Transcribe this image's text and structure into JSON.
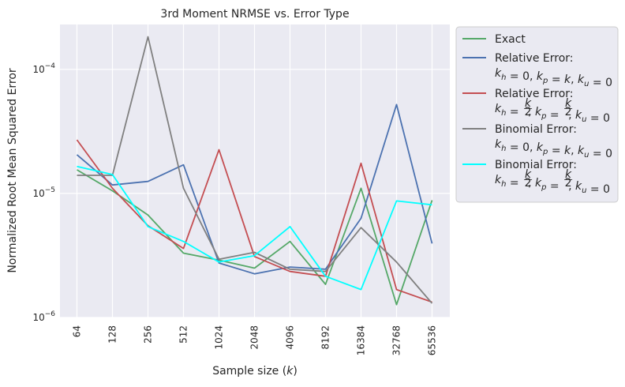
{
  "chart_data": {
    "type": "line",
    "title": "3rd Moment NRMSE vs. Error Type",
    "xlabel": "Sample size (k)",
    "xlabel_prefix": "Sample size (",
    "xlabel_var": "k",
    "xlabel_suffix": ")",
    "ylabel": "Normalized Root Mean Squared Error",
    "yscale": "log",
    "ylim": [
      1e-06,
      0.00023
    ],
    "y_ticks": [
      {
        "value": 1e-06,
        "base": "10",
        "exp": "−6"
      },
      {
        "value": 1e-05,
        "base": "10",
        "exp": "−5"
      },
      {
        "value": 0.0001,
        "base": "10",
        "exp": "−4"
      }
    ],
    "categories": [
      "64",
      "128",
      "256",
      "512",
      "1024",
      "2048",
      "4096",
      "8192",
      "16384",
      "32768",
      "65536"
    ],
    "grid": true,
    "legend_position": "outside-right",
    "series": [
      {
        "name": "Exact",
        "color": "#55a868",
        "values": [
          1.55e-05,
          1.05e-05,
          6.7e-06,
          3.3e-06,
          2.9e-06,
          2.5e-06,
          4.1e-06,
          1.85e-06,
          1.1e-05,
          1.27e-06,
          8.8e-06
        ]
      },
      {
        "name": "Relative Error: k_h = 0, k_p = k, k_u = 0",
        "legend_line1": "Relative Error:",
        "legend_math": [
          {
            "v": "k",
            "s": "h"
          },
          {
            "t": " = 0, "
          },
          {
            "v": "k",
            "s": "p"
          },
          {
            "t": " = "
          },
          {
            "v": "k"
          },
          {
            "t": ", "
          },
          {
            "v": "k",
            "s": "u"
          },
          {
            "t": " = 0"
          }
        ],
        "color": "#4c72b0",
        "values": [
          2.05e-05,
          1.17e-05,
          1.25e-05,
          1.7e-05,
          2.75e-06,
          2.25e-06,
          2.55e-06,
          2.45e-06,
          6.3e-06,
          5.2e-05,
          3.95e-06
        ]
      },
      {
        "name": "Relative Error: k_h = k/2, k_p = k/2, k_u = 0",
        "legend_line1": "Relative Error:",
        "legend_math": [
          {
            "v": "k",
            "s": "h"
          },
          {
            "t": " = "
          },
          {
            "f": true
          },
          {
            "t": ", "
          },
          {
            "v": "k",
            "s": "p"
          },
          {
            "t": " = "
          },
          {
            "f": true
          },
          {
            "t": ", "
          },
          {
            "v": "k",
            "s": "u"
          },
          {
            "t": " = 0"
          }
        ],
        "color": "#c44e52",
        "values": [
          2.7e-05,
          1.1e-05,
          5.5e-06,
          3.6e-06,
          2.25e-05,
          3.1e-06,
          2.35e-06,
          2.15e-06,
          1.75e-05,
          1.68e-06,
          1.33e-06
        ]
      },
      {
        "name": "Binomial Error: k_h = 0, k_p = k, k_u = 0",
        "legend_line1": "Binomial Error:",
        "legend_math": [
          {
            "v": "k",
            "s": "h"
          },
          {
            "t": " = 0, "
          },
          {
            "v": "k",
            "s": "p"
          },
          {
            "t": " = "
          },
          {
            "v": "k"
          },
          {
            "t": ", "
          },
          {
            "v": "k",
            "s": "u"
          },
          {
            "t": " = 0"
          }
        ],
        "color": "#808080",
        "values": [
          1.4e-05,
          1.4e-05,
          0.000183,
          1.1e-05,
          2.95e-06,
          3.35e-06,
          2.45e-06,
          2.35e-06,
          5.3e-06,
          2.8e-06,
          1.3e-06
        ]
      },
      {
        "name": "Binomial Error: k_h = k/2, k_p = k/2, k_u = 0",
        "legend_line1": "Binomial Error:",
        "legend_math": [
          {
            "v": "k",
            "s": "h"
          },
          {
            "t": " = "
          },
          {
            "f": true
          },
          {
            "t": ", "
          },
          {
            "v": "k",
            "s": "p"
          },
          {
            "t": " = "
          },
          {
            "f": true
          },
          {
            "t": ", "
          },
          {
            "v": "k",
            "s": "u"
          },
          {
            "t": " = 0"
          }
        ],
        "color": "#00ffff",
        "values": [
          1.65e-05,
          1.42e-05,
          5.4e-06,
          4.1e-06,
          2.8e-06,
          3.15e-06,
          5.4e-06,
          2.15e-06,
          1.68e-06,
          8.7e-06,
          8.1e-06
        ]
      }
    ]
  }
}
